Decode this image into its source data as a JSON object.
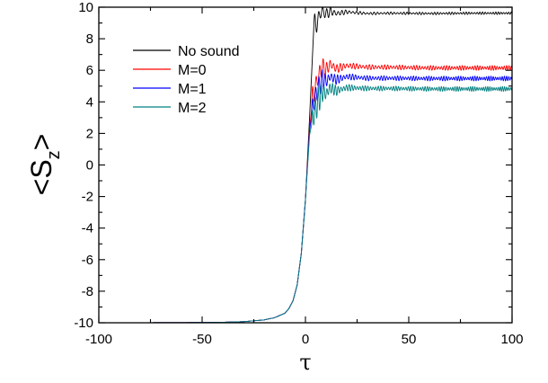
{
  "chart_data": {
    "type": "line",
    "title": "",
    "xlabel": "τ",
    "ylabel": {
      "open": "<",
      "symbol": "S",
      "subscript": "z",
      "close": ">"
    },
    "xlim": [
      -100,
      100
    ],
    "ylim": [
      -10,
      10
    ],
    "xticks": [
      -100,
      -50,
      0,
      50,
      100
    ],
    "yticks": [
      -10,
      -8,
      -6,
      -4,
      -2,
      0,
      2,
      4,
      6,
      8,
      10
    ],
    "grid": false,
    "legend_position": "top-left",
    "series": [
      {
        "name": "No sound",
        "color": "#000000",
        "x": [
          -100,
          -60,
          -40,
          -30,
          -20,
          -15,
          -10,
          -8,
          -6,
          -4,
          -2,
          0,
          2,
          4,
          6,
          8,
          10,
          12,
          15,
          20,
          30,
          40,
          60,
          80,
          100
        ],
        "y": [
          -10,
          -9.99,
          -9.97,
          -9.93,
          -9.82,
          -9.68,
          -9.4,
          -9.1,
          -8.6,
          -7.6,
          -5.6,
          -2.2,
          3.0,
          8.6,
          9.2,
          9.8,
          9.55,
          9.75,
          9.6,
          9.7,
          9.6,
          9.62,
          9.6,
          9.62,
          9.62
        ],
        "oscillation": {
          "start": 4,
          "amplitude_start": 0.9,
          "amplitude_end": 0.08
        }
      },
      {
        "name": "M=0",
        "color": "#ff0000",
        "x": [
          -100,
          -60,
          -40,
          -30,
          -20,
          -15,
          -10,
          -8,
          -6,
          -4,
          -2,
          0,
          2,
          4,
          6,
          8,
          10,
          12,
          15,
          20,
          30,
          40,
          60,
          80,
          100
        ],
        "y": [
          -10,
          -9.99,
          -9.97,
          -9.93,
          -9.82,
          -9.68,
          -9.4,
          -9.1,
          -8.6,
          -7.6,
          -5.6,
          -2.2,
          2.4,
          4.6,
          5.5,
          6.2,
          6.0,
          6.4,
          6.1,
          6.3,
          6.2,
          6.2,
          6.15,
          6.15,
          6.15
        ],
        "oscillation": {
          "start": 3,
          "amplitude_start": 1.3,
          "amplitude_end": 0.15
        }
      },
      {
        "name": "M=1",
        "color": "#0000ff",
        "x": [
          -100,
          -60,
          -40,
          -30,
          -20,
          -15,
          -10,
          -8,
          -6,
          -4,
          -2,
          0,
          2,
          4,
          6,
          8,
          10,
          12,
          15,
          20,
          30,
          40,
          60,
          80,
          100
        ],
        "y": [
          -10,
          -9.99,
          -9.97,
          -9.93,
          -9.82,
          -9.68,
          -9.4,
          -9.1,
          -8.6,
          -7.6,
          -5.6,
          -2.2,
          2.2,
          4.0,
          4.8,
          5.4,
          5.3,
          5.6,
          5.4,
          5.6,
          5.5,
          5.5,
          5.48,
          5.48,
          5.48
        ],
        "oscillation": {
          "start": 3,
          "amplitude_start": 1.3,
          "amplitude_end": 0.15
        }
      },
      {
        "name": "M=2",
        "color": "#008080",
        "x": [
          -100,
          -60,
          -40,
          -30,
          -20,
          -15,
          -10,
          -8,
          -6,
          -4,
          -2,
          0,
          2,
          4,
          6,
          8,
          10,
          12,
          15,
          20,
          30,
          40,
          60,
          80,
          100
        ],
        "y": [
          -10,
          -9.99,
          -9.97,
          -9.93,
          -9.82,
          -9.68,
          -9.4,
          -9.1,
          -8.6,
          -7.6,
          -5.6,
          -2.2,
          1.9,
          3.2,
          4.0,
          4.6,
          4.5,
          4.9,
          4.7,
          4.9,
          4.85,
          4.85,
          4.82,
          4.82,
          4.82
        ],
        "oscillation": {
          "start": 3,
          "amplitude_start": 1.4,
          "amplitude_end": 0.15
        }
      }
    ]
  }
}
